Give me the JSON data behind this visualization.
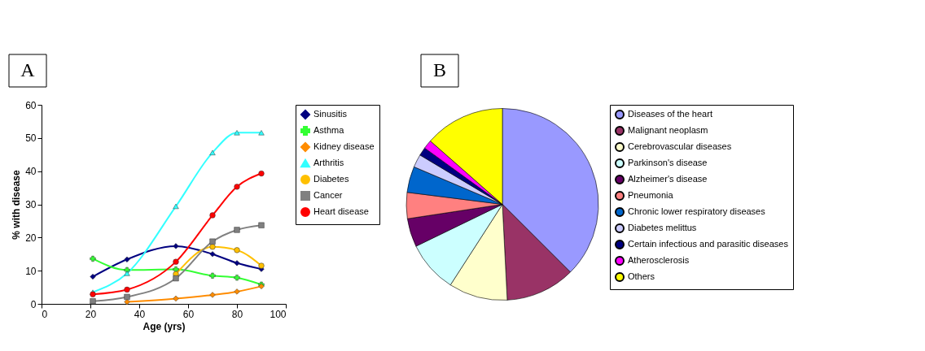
{
  "chart_data": [
    {
      "type": "line",
      "xlabel": "Age (yrs)",
      "ylabel": "% with disease",
      "annotations": [
        "A"
      ],
      "x": [
        21,
        35,
        55,
        70,
        80,
        90
      ],
      "xlim": [
        0,
        100
      ],
      "xticks": [
        0,
        20,
        40,
        60,
        80,
        100
      ],
      "ylim": [
        0,
        60
      ],
      "yticks": [
        0,
        10,
        20,
        30,
        40,
        50,
        60
      ],
      "grid": false,
      "legend": "right",
      "line_style": "solid",
      "series": [
        {
          "name": "Sinusitis",
          "color": "#000080",
          "marker": "diamond",
          "values": [
            8.2,
            13.4,
            17.4,
            15.0,
            12.3,
            10.5
          ]
        },
        {
          "name": "Asthma",
          "color": "#33ff33",
          "marker": "cross",
          "values": [
            13.6,
            10.2,
            10.4,
            8.5,
            7.9,
            5.8
          ]
        },
        {
          "name": "Kidney disease",
          "color": "#ff8c00",
          "marker": "diamond",
          "values": [
            null,
            0.6,
            1.6,
            2.7,
            3.7,
            5.3
          ]
        },
        {
          "name": "Arthritis",
          "color": "#33ffff",
          "marker": "triangle",
          "values": [
            3.5,
            9.2,
            29.4,
            45.6,
            51.6,
            51.6
          ]
        },
        {
          "name": "Diabetes",
          "color": "#ffc000",
          "marker": "circle",
          "values": [
            null,
            null,
            9.0,
            17.2,
            16.2,
            11.5
          ]
        },
        {
          "name": "Cancer",
          "color": "#808080",
          "marker": "square",
          "values": [
            0.8,
            2.1,
            7.7,
            18.8,
            22.3,
            23.7
          ]
        },
        {
          "name": "Heart disease",
          "color": "#ff0000",
          "marker": "circle",
          "values": [
            2.9,
            4.3,
            12.7,
            26.7,
            35.3,
            39.3
          ]
        }
      ]
    },
    {
      "type": "pie",
      "annotations": [
        "B"
      ],
      "legend": "right",
      "categories": [
        "Diseases of the heart",
        "Malignant neoplasm",
        "Cerebrovascular diseases",
        "Parkinson's disease",
        "Alzheimer's disease",
        "Pneumonia",
        "Chronic lower respiratory diseases",
        "Diabetes melittus",
        "Certain infectious and parasitic diseases",
        "Atherosclerosis",
        "Others"
      ],
      "values": [
        37.5,
        11.7,
        9.9,
        8.7,
        4.8,
        4.4,
        4.4,
        2.2,
        1.4,
        1.5,
        13.5
      ],
      "colors": [
        "#9999ff",
        "#993366",
        "#ffffcc",
        "#ccffff",
        "#660066",
        "#ff8080",
        "#0066cc",
        "#ccccff",
        "#000080",
        "#ff00ff",
        "#ffff00"
      ]
    }
  ]
}
